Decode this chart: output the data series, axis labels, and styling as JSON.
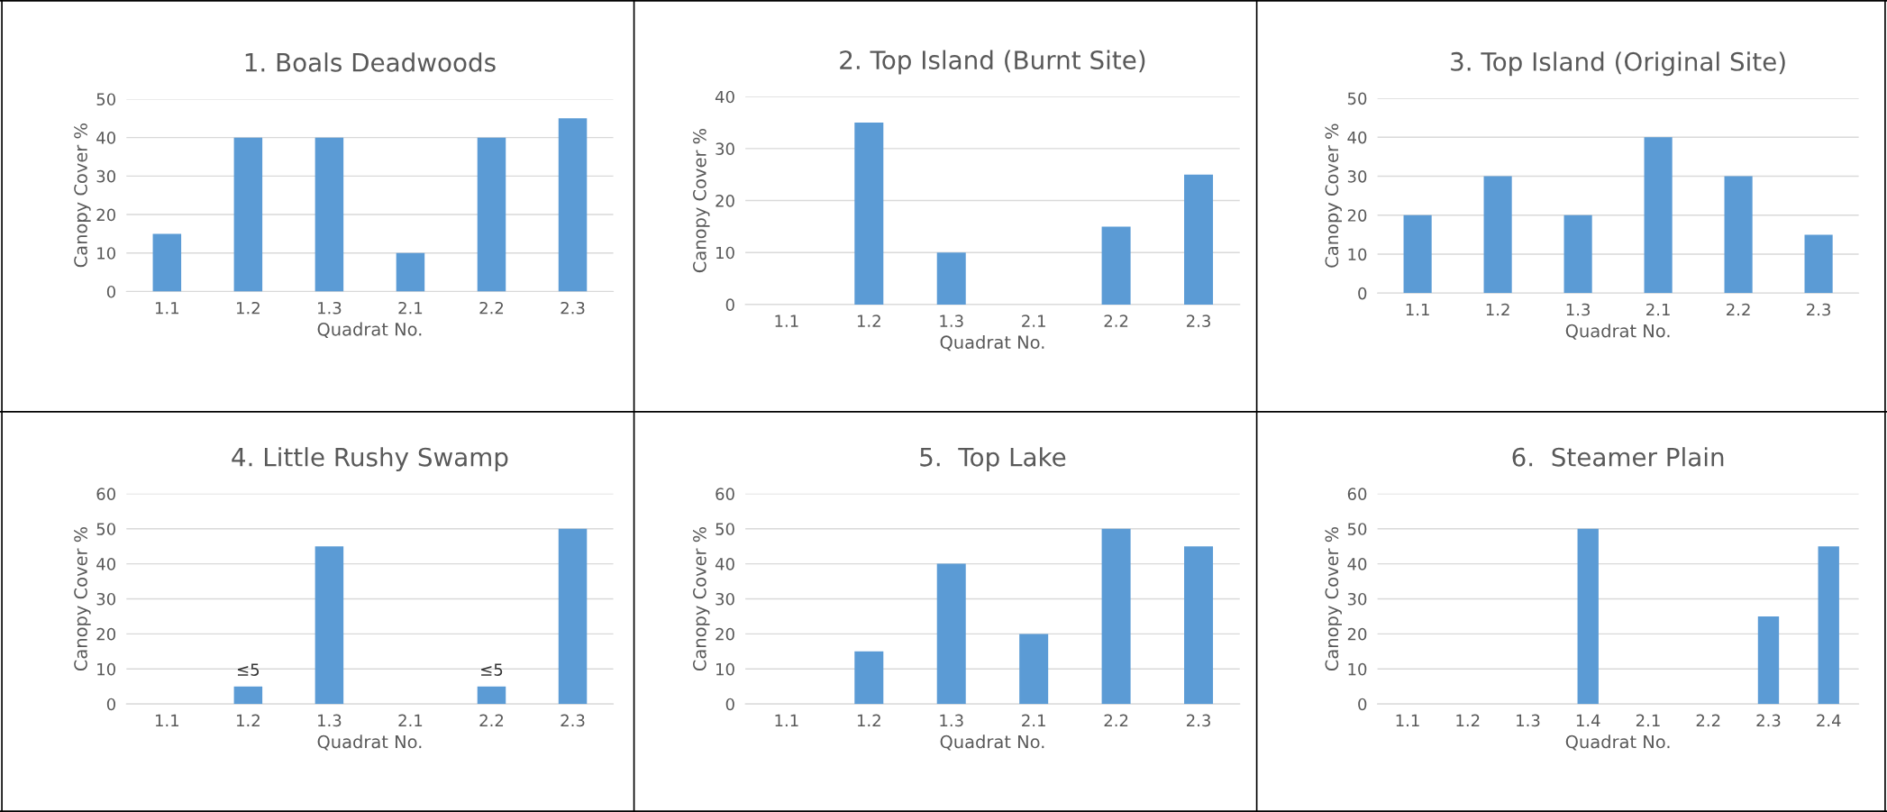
{
  "chart_data": [
    {
      "type": "bar",
      "title": "1. Boals Deadwoods",
      "xlabel": "Quadrat No.",
      "ylabel": "Canopy Cover %",
      "categories": [
        "1.1",
        "1.2",
        "1.3",
        "2.1",
        "2.2",
        "2.3"
      ],
      "values": [
        15,
        40,
        40,
        10,
        40,
        45
      ],
      "color": "#5b9bd5",
      "ylim": [
        0,
        50
      ],
      "yticks": [
        0,
        10,
        20,
        30,
        40,
        50
      ],
      "grid": "y"
    },
    {
      "type": "bar",
      "title": "2. Top Island (Burnt Site)",
      "xlabel": "Quadrat No.",
      "ylabel": "Canopy Cover %",
      "categories": [
        "1.1",
        "1.2",
        "1.3",
        "2.1",
        "2.2",
        "2.3"
      ],
      "values": [
        0,
        35,
        10,
        0,
        15,
        25
      ],
      "color": "#5b9bd5",
      "ylim": [
        0,
        40
      ],
      "yticks": [
        0,
        10,
        20,
        30,
        40
      ],
      "grid": "y"
    },
    {
      "type": "bar",
      "title": "3. Top Island (Original Site)",
      "xlabel": "Quadrat No.",
      "ylabel": "Canopy Cover %",
      "categories": [
        "1.1",
        "1.2",
        "1.3",
        "2.1",
        "2.2",
        "2.3"
      ],
      "values": [
        20,
        30,
        20,
        40,
        30,
        15
      ],
      "color": "#5b9bd5",
      "ylim": [
        0,
        50
      ],
      "yticks": [
        0,
        10,
        20,
        30,
        40,
        50
      ],
      "grid": "y"
    },
    {
      "type": "bar",
      "title": "4. Little Rushy Swamp",
      "xlabel": "Quadrat No.",
      "ylabel": "Canopy Cover %",
      "categories": [
        "1.1",
        "1.2",
        "1.3",
        "2.1",
        "2.2",
        "2.3"
      ],
      "values": [
        0,
        5,
        45,
        0,
        5,
        50
      ],
      "value_labels": [
        null,
        "≤5",
        null,
        null,
        "≤5",
        null
      ],
      "color": "#5b9bd5",
      "ylim": [
        0,
        60
      ],
      "yticks": [
        0,
        10,
        20,
        30,
        40,
        50,
        60
      ],
      "grid": "y"
    },
    {
      "type": "bar",
      "title": "5.  Top Lake",
      "xlabel": "Quadrat No.",
      "ylabel": "Canopy Cover %",
      "categories": [
        "1.1",
        "1.2",
        "1.3",
        "2.1",
        "2.2",
        "2.3"
      ],
      "values": [
        0,
        15,
        40,
        20,
        50,
        45
      ],
      "color": "#5b9bd5",
      "ylim": [
        0,
        60
      ],
      "yticks": [
        0,
        10,
        20,
        30,
        40,
        50,
        60
      ],
      "grid": "y"
    },
    {
      "type": "bar",
      "title": "6.  Steamer Plain",
      "xlabel": "Quadrat No.",
      "ylabel": "Canopy Cover %",
      "categories": [
        "1.1",
        "1.2",
        "1.3",
        "1.4",
        "2.1",
        "2.2",
        "2.3",
        "2.4"
      ],
      "values": [
        0,
        0,
        0,
        50,
        0,
        0,
        25,
        45
      ],
      "color": "#5b9bd5",
      "ylim": [
        0,
        60
      ],
      "yticks": [
        0,
        10,
        20,
        30,
        40,
        50,
        60
      ],
      "grid": "y"
    }
  ]
}
